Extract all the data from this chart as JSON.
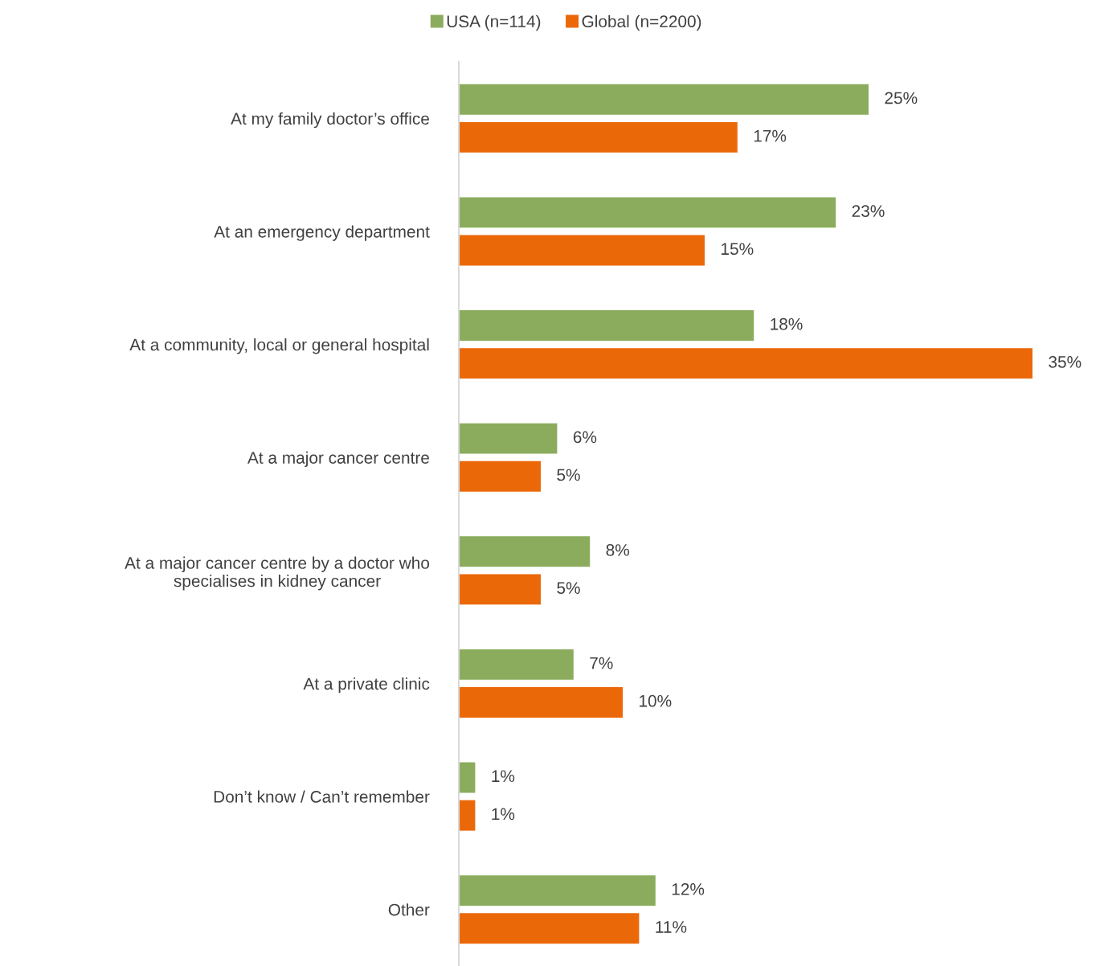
{
  "chart_data": {
    "type": "bar",
    "orientation": "horizontal",
    "categories": [
      "At my family doctor’s office",
      "At an emergency department",
      "At a community, local or general hospital",
      "At a major cancer centre",
      "At a major cancer centre by a doctor who\nspecialises in kidney cancer",
      "At a private clinic",
      "Don’t know / Can’t remember",
      "Other"
    ],
    "series": [
      {
        "name": "USA (n=114)",
        "color": "#8aac5c",
        "values": [
          25,
          23,
          18,
          6,
          8,
          7,
          1,
          12
        ],
        "value_labels": [
          "25%",
          "23%",
          "18%",
          "6%",
          "8%",
          "7%",
          "1%",
          "12%"
        ]
      },
      {
        "name": "Global (n=2200)",
        "color": "#eb6809",
        "values": [
          17,
          15,
          35,
          5,
          5,
          10,
          1,
          11
        ],
        "value_labels": [
          "17%",
          "15%",
          "35%",
          "5%",
          "5%",
          "10%",
          "1%",
          "11%"
        ]
      }
    ],
    "legend": "top",
    "grid": false,
    "tick_labels": "y"
  }
}
